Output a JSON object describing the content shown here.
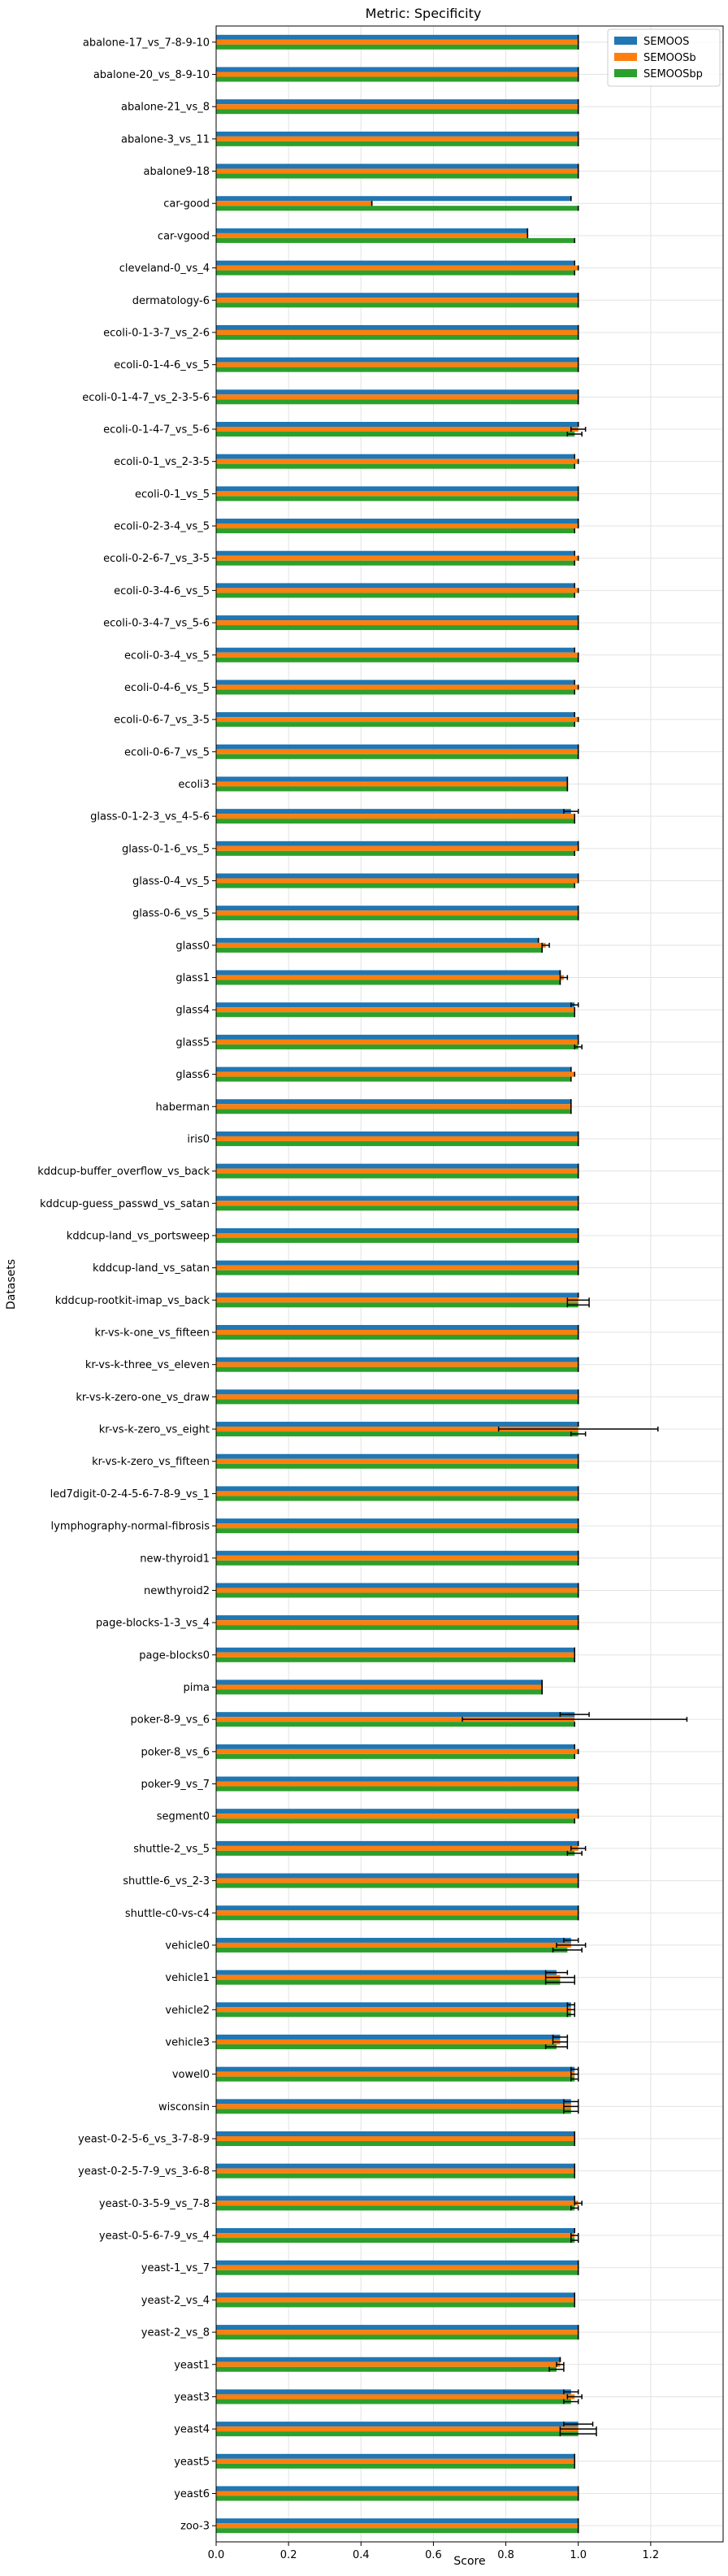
{
  "chart_data": {
    "type": "bar",
    "orientation": "horizontal",
    "title": "Metric: Specificity",
    "xlabel": "Score",
    "ylabel": "Datasets",
    "xlim": [
      0,
      1.4
    ],
    "xticks": [
      "0.0",
      "0.2",
      "0.4",
      "0.6",
      "0.8",
      "1.0",
      "1.2"
    ],
    "grid": true,
    "legend_position": "top-right",
    "series": [
      {
        "name": "SEMOOS",
        "color": "#1f77b4"
      },
      {
        "name": "SEMOOSb",
        "color": "#ff7f0e"
      },
      {
        "name": "SEMOOSbp",
        "color": "#2ca02c"
      }
    ],
    "categories": [
      "abalone-17_vs_7-8-9-10",
      "abalone-20_vs_8-9-10",
      "abalone-21_vs_8",
      "abalone-3_vs_11",
      "abalone9-18",
      "car-good",
      "car-vgood",
      "cleveland-0_vs_4",
      "dermatology-6",
      "ecoli-0-1-3-7_vs_2-6",
      "ecoli-0-1-4-6_vs_5",
      "ecoli-0-1-4-7_vs_2-3-5-6",
      "ecoli-0-1-4-7_vs_5-6",
      "ecoli-0-1_vs_2-3-5",
      "ecoli-0-1_vs_5",
      "ecoli-0-2-3-4_vs_5",
      "ecoli-0-2-6-7_vs_3-5",
      "ecoli-0-3-4-6_vs_5",
      "ecoli-0-3-4-7_vs_5-6",
      "ecoli-0-3-4_vs_5",
      "ecoli-0-4-6_vs_5",
      "ecoli-0-6-7_vs_3-5",
      "ecoli-0-6-7_vs_5",
      "ecoli3",
      "glass-0-1-2-3_vs_4-5-6",
      "glass-0-1-6_vs_5",
      "glass-0-4_vs_5",
      "glass-0-6_vs_5",
      "glass0",
      "glass1",
      "glass4",
      "glass5",
      "glass6",
      "haberman",
      "iris0",
      "kddcup-buffer_overflow_vs_back",
      "kddcup-guess_passwd_vs_satan",
      "kddcup-land_vs_portsweep",
      "kddcup-land_vs_satan",
      "kddcup-rootkit-imap_vs_back",
      "kr-vs-k-one_vs_fifteen",
      "kr-vs-k-three_vs_eleven",
      "kr-vs-k-zero-one_vs_draw",
      "kr-vs-k-zero_vs_eight",
      "kr-vs-k-zero_vs_fifteen",
      "led7digit-0-2-4-5-6-7-8-9_vs_1",
      "lymphography-normal-fibrosis",
      "new-thyroid1",
      "newthyroid2",
      "page-blocks-1-3_vs_4",
      "page-blocks0",
      "pima",
      "poker-8-9_vs_6",
      "poker-8_vs_6",
      "poker-9_vs_7",
      "segment0",
      "shuttle-2_vs_5",
      "shuttle-6_vs_2-3",
      "shuttle-c0-vs-c4",
      "vehicle0",
      "vehicle1",
      "vehicle2",
      "vehicle3",
      "vowel0",
      "wisconsin",
      "yeast-0-2-5-6_vs_3-7-8-9",
      "yeast-0-2-5-7-9_vs_3-6-8",
      "yeast-0-3-5-9_vs_7-8",
      "yeast-0-5-6-7-9_vs_4",
      "yeast-1_vs_7",
      "yeast-2_vs_4",
      "yeast-2_vs_8",
      "yeast1",
      "yeast3",
      "yeast4",
      "yeast5",
      "yeast6",
      "zoo-3"
    ],
    "values": {
      "SEMOOS": [
        1.0,
        1.0,
        1.0,
        1.0,
        1.0,
        0.98,
        0.86,
        0.99,
        1.0,
        1.0,
        1.0,
        1.0,
        1.0,
        0.99,
        1.0,
        1.0,
        0.99,
        0.99,
        1.0,
        0.99,
        0.99,
        0.99,
        1.0,
        0.97,
        0.98,
        1.0,
        1.0,
        1.0,
        0.89,
        0.95,
        0.99,
        1.0,
        0.98,
        0.98,
        1.0,
        1.0,
        1.0,
        1.0,
        1.0,
        1.0,
        1.0,
        1.0,
        1.0,
        1.0,
        1.0,
        1.0,
        1.0,
        1.0,
        1.0,
        1.0,
        0.99,
        0.9,
        0.99,
        0.99,
        1.0,
        1.0,
        1.0,
        1.0,
        1.0,
        0.98,
        0.94,
        0.98,
        0.95,
        0.99,
        0.98,
        0.99,
        0.99,
        0.99,
        0.99,
        1.0,
        0.99,
        1.0,
        0.95,
        0.98,
        1.0,
        0.99,
        1.0,
        1.0
      ],
      "SEMOOSb": [
        1.0,
        1.0,
        1.0,
        1.0,
        1.0,
        0.43,
        0.86,
        1.0,
        1.0,
        1.0,
        1.0,
        1.0,
        1.0,
        1.0,
        1.0,
        1.0,
        1.0,
        1.0,
        1.0,
        1.0,
        1.0,
        1.0,
        1.0,
        0.97,
        0.99,
        1.0,
        1.0,
        1.0,
        0.91,
        0.96,
        0.99,
        1.0,
        0.99,
        0.98,
        1.0,
        1.0,
        1.0,
        1.0,
        1.0,
        1.0,
        1.0,
        1.0,
        1.0,
        1.0,
        1.0,
        1.0,
        1.0,
        1.0,
        1.0,
        1.0,
        0.99,
        0.9,
        0.99,
        1.0,
        1.0,
        1.0,
        1.0,
        1.0,
        1.0,
        0.98,
        0.95,
        0.98,
        0.95,
        0.99,
        0.98,
        0.99,
        0.99,
        1.0,
        0.99,
        1.0,
        0.99,
        1.0,
        0.95,
        0.99,
        1.0,
        0.99,
        1.0,
        1.0
      ],
      "SEMOOSbp": [
        1.0,
        1.0,
        1.0,
        1.0,
        1.0,
        1.0,
        0.99,
        0.99,
        1.0,
        1.0,
        1.0,
        1.0,
        0.99,
        0.99,
        1.0,
        0.99,
        0.99,
        0.99,
        1.0,
        1.0,
        0.99,
        0.99,
        1.0,
        0.97,
        0.99,
        0.99,
        0.99,
        1.0,
        0.9,
        0.95,
        0.99,
        1.0,
        0.98,
        0.98,
        1.0,
        1.0,
        1.0,
        1.0,
        1.0,
        1.0,
        1.0,
        1.0,
        1.0,
        1.0,
        1.0,
        1.0,
        1.0,
        1.0,
        1.0,
        1.0,
        0.99,
        0.9,
        0.99,
        0.99,
        1.0,
        0.99,
        0.99,
        1.0,
        1.0,
        0.97,
        0.95,
        0.98,
        0.94,
        0.99,
        0.98,
        0.99,
        0.99,
        0.99,
        0.99,
        1.0,
        0.99,
        1.0,
        0.94,
        0.98,
        1.0,
        0.99,
        1.0,
        1.0
      ]
    },
    "errors": {
      "SEMOOS": [
        0,
        0,
        0,
        0,
        0,
        0,
        0,
        0,
        0,
        0,
        0,
        0,
        0,
        0,
        0,
        0,
        0,
        0,
        0,
        0,
        0,
        0,
        0,
        0,
        0.02,
        0,
        0,
        0,
        0,
        0,
        0.01,
        0,
        0,
        0,
        0,
        0,
        0,
        0,
        0,
        0,
        0,
        0,
        0,
        0,
        0,
        0,
        0,
        0,
        0,
        0,
        0,
        0,
        0.04,
        0,
        0,
        0,
        0,
        0,
        0,
        0.02,
        0.03,
        0.01,
        0.02,
        0.01,
        0.02,
        0,
        0,
        0,
        0,
        0,
        0,
        0,
        0,
        0.02,
        0.04,
        0,
        0,
        0
      ],
      "SEMOOSb": [
        0,
        0,
        0,
        0,
        0,
        0,
        0,
        0,
        0,
        0,
        0,
        0,
        0.02,
        0,
        0,
        0,
        0,
        0,
        0,
        0,
        0,
        0,
        0,
        0,
        0,
        0,
        0,
        0,
        0.01,
        0.01,
        0,
        0,
        0,
        0,
        0,
        0,
        0,
        0,
        0,
        0.03,
        0,
        0,
        0,
        0.22,
        0,
        0,
        0,
        0,
        0,
        0,
        0,
        0,
        0.31,
        0,
        0,
        0,
        0.02,
        0,
        0,
        0.04,
        0.04,
        0.01,
        0.02,
        0.01,
        0.02,
        0,
        0,
        0.01,
        0.01,
        0,
        0,
        0,
        0.01,
        0.02,
        0.05,
        0,
        0,
        0
      ],
      "SEMOOSbp": [
        0,
        0,
        0,
        0,
        0,
        0,
        0,
        0,
        0,
        0,
        0,
        0,
        0.02,
        0,
        0,
        0,
        0,
        0,
        0,
        0,
        0,
        0,
        0,
        0,
        0,
        0,
        0,
        0,
        0,
        0,
        0,
        0.01,
        0,
        0,
        0,
        0,
        0,
        0,
        0,
        0.03,
        0,
        0,
        0,
        0.02,
        0,
        0,
        0,
        0,
        0,
        0,
        0,
        0,
        0,
        0,
        0,
        0,
        0.02,
        0,
        0,
        0.04,
        0.04,
        0.01,
        0.03,
        0.01,
        0.02,
        0,
        0,
        0.01,
        0.01,
        0,
        0,
        0,
        0.02,
        0.02,
        0.05,
        0,
        0,
        0
      ]
    }
  }
}
